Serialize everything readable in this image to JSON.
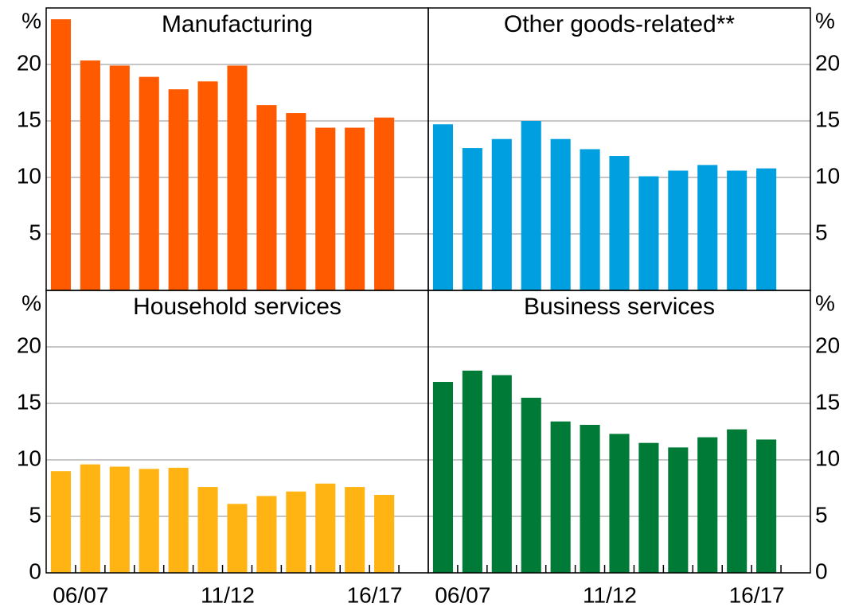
{
  "chart_data": [
    {
      "type": "bar",
      "title": "Manufacturing",
      "y_unit": "%",
      "axis_side": "left",
      "color": "#ff5a00",
      "grid": true,
      "values": [
        24.0,
        20.35,
        19.9,
        18.9,
        17.8,
        18.5,
        19.9,
        16.4,
        15.7,
        14.4,
        14.4,
        15.3
      ],
      "ylim": [
        0,
        25
      ],
      "yticks": [
        5,
        10,
        15,
        20
      ]
    },
    {
      "type": "bar",
      "title": "Other goods-related**",
      "y_unit": "%",
      "axis_side": "right",
      "color": "#00a0e0",
      "grid": true,
      "values": [
        14.7,
        12.6,
        13.4,
        15.0,
        13.4,
        12.5,
        11.9,
        10.1,
        10.6,
        11.1,
        10.6,
        10.8
      ],
      "ylim": [
        0,
        25
      ],
      "yticks": [
        5,
        10,
        15,
        20
      ]
    },
    {
      "type": "bar",
      "title": "Household services",
      "y_unit": "%",
      "axis_side": "left",
      "color": "#ffb414",
      "grid": true,
      "categories": [
        null,
        "06/07",
        null,
        null,
        null,
        null,
        "11/12",
        null,
        null,
        null,
        null,
        "16/17"
      ],
      "values": [
        9.0,
        9.6,
        9.4,
        9.2,
        9.3,
        7.6,
        6.1,
        6.8,
        7.2,
        7.9,
        7.6,
        6.9
      ],
      "ylim": [
        0,
        25
      ],
      "yticks": [
        0,
        5,
        10,
        15,
        20
      ]
    },
    {
      "type": "bar",
      "title": "Business services",
      "y_unit": "%",
      "axis_side": "right",
      "color": "#007a37",
      "grid": true,
      "categories": [
        null,
        "06/07",
        null,
        null,
        null,
        null,
        "11/12",
        null,
        null,
        null,
        null,
        "16/17"
      ],
      "values": [
        16.9,
        17.9,
        17.5,
        15.5,
        13.4,
        13.1,
        12.3,
        11.5,
        11.1,
        12.0,
        12.7,
        11.8
      ],
      "ylim": [
        0,
        25
      ],
      "yticks": [
        0,
        5,
        10,
        15,
        20
      ]
    }
  ]
}
